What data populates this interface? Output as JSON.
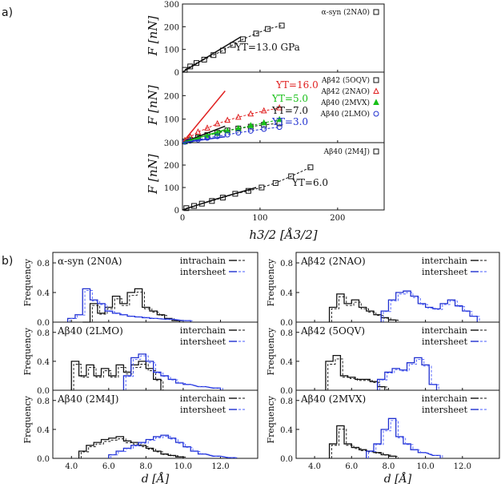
{
  "panel_labels": {
    "a": "a)",
    "b": "b)"
  },
  "colors": {
    "black": "#111111",
    "red": "#e02020",
    "green": "#18c018",
    "blue": "#2030d0",
    "bluelight": "#4a5cff"
  },
  "chart_data": [
    {
      "id": "a1",
      "type": "scatter",
      "ylabel": "F [nN]",
      "xlim": [
        0,
        260
      ],
      "ylim": [
        0,
        300
      ],
      "yticks": [
        "300",
        "200",
        "100",
        "0"
      ],
      "series": [
        {
          "name": "α-syn (2NA0)",
          "marker": "square",
          "color": "#111111",
          "x": [
            3,
            10,
            18,
            28,
            40,
            52,
            65,
            78,
            95,
            110,
            128
          ],
          "y": [
            10,
            25,
            40,
            55,
            75,
            95,
            120,
            145,
            170,
            190,
            205
          ]
        },
        {
          "name": "fit",
          "marker": "none",
          "color": "#111111",
          "line": "solid",
          "x": [
            0,
            75
          ],
          "y": [
            0,
            155
          ]
        }
      ],
      "annotations": [
        "YT=13.0 GPa"
      ]
    },
    {
      "id": "a2",
      "type": "scatter",
      "ylabel": "F [nN]",
      "xlim": [
        0,
        260
      ],
      "ylim": [
        0,
        300
      ],
      "yticks": [
        "200",
        "100"
      ],
      "series": [
        {
          "name": "Aβ42 (5OQV)",
          "marker": "square",
          "color": "#111111",
          "x": [
            3,
            10,
            20,
            32,
            45,
            58,
            72,
            88,
            105,
            125
          ],
          "y": [
            5,
            12,
            22,
            32,
            42,
            52,
            60,
            68,
            76,
            82
          ]
        },
        {
          "name": "Aβ42 (2NAO)",
          "marker": "triangle",
          "color": "#e02020",
          "x": [
            3,
            10,
            20,
            32,
            45,
            58,
            72,
            88,
            105,
            125
          ],
          "y": [
            10,
            25,
            45,
            62,
            80,
            95,
            108,
            122,
            135,
            148
          ]
        },
        {
          "name": "Aβ40 (2MVX)",
          "marker": "triangle-filled",
          "color": "#18c018",
          "x": [
            3,
            10,
            20,
            32,
            45,
            58,
            72,
            88,
            105,
            125
          ],
          "y": [
            5,
            12,
            20,
            30,
            40,
            50,
            60,
            72,
            84,
            98
          ]
        },
        {
          "name": "Aβ40 (2LMO)",
          "marker": "circle",
          "color": "#2030d0",
          "x": [
            3,
            10,
            20,
            32,
            45,
            58,
            72,
            88,
            105,
            125
          ],
          "y": [
            3,
            8,
            13,
            20,
            27,
            34,
            42,
            50,
            58,
            66
          ]
        }
      ],
      "annotations": [
        "YT=16.0",
        "YT=5.0",
        "YT=7.0",
        "YT=3.0"
      ]
    },
    {
      "id": "a3",
      "type": "scatter",
      "xlabel": "h3/2 [Å3/2]",
      "ylabel": "F [nN]",
      "xlim": [
        0,
        260
      ],
      "ylim": [
        0,
        300
      ],
      "xticks": [
        "0",
        "100",
        "200"
      ],
      "yticks": [
        "300",
        "200",
        "100",
        "0"
      ],
      "series": [
        {
          "name": "Aβ40 (2M4J)",
          "marker": "square",
          "color": "#111111",
          "x": [
            5,
            15,
            25,
            38,
            52,
            68,
            85,
            102,
            120,
            140,
            165
          ],
          "y": [
            8,
            18,
            28,
            40,
            55,
            72,
            85,
            100,
            120,
            150,
            190
          ]
        }
      ],
      "annotations": [
        "YT=6.0"
      ]
    },
    {
      "id": "b",
      "type": "histogram",
      "xlabel": "d [Å]",
      "ylabel": "Frequency",
      "panels": [
        {
          "title": "α-syn (2N0A)",
          "legend": [
            "intrachain",
            "intersheet"
          ],
          "yticks": [
            "0.8",
            "0.4",
            "0.0"
          ]
        },
        {
          "title": "Aβ42 (2NAO)",
          "legend": [
            "interchain",
            "intersheet"
          ],
          "yticks": [
            "0.8",
            "0.4",
            "0.0"
          ]
        },
        {
          "title": "Aβ40 (2LMO)",
          "legend": [
            "interchain",
            "intersheet"
          ],
          "yticks": [
            "0.8",
            "0.4",
            "0.0"
          ]
        },
        {
          "title": "Aβ42 (5OQV)",
          "legend": [
            "interchain",
            "intersheet"
          ],
          "yticks": [
            "0.8",
            "0.4",
            "0.0"
          ]
        },
        {
          "title": "Aβ40 (2M4J)",
          "legend": [
            "interchain",
            "intersheet"
          ],
          "yticks": [
            "0.8",
            "0.4",
            "0.0"
          ],
          "xticks": [
            "4.0",
            "6.0",
            "8.0",
            "10.0",
            "12.0"
          ]
        },
        {
          "title": "Aβ40 (2MVX)",
          "legend": [
            "interchain",
            "intersheet"
          ],
          "yticks": [
            "0.8",
            "0.4",
            "0.0"
          ],
          "xticks": [
            "4.0",
            "6.0",
            "8.0",
            "10.0",
            "12.0"
          ]
        }
      ],
      "xlim": [
        3.0,
        14.0
      ]
    }
  ]
}
